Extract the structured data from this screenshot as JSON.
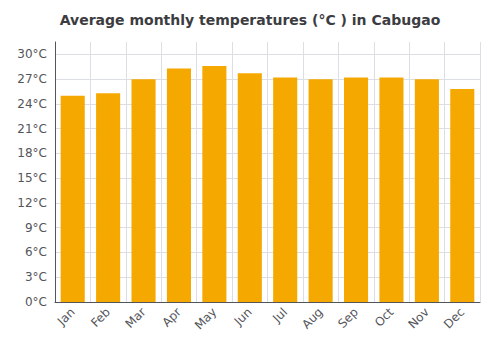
{
  "chart_data": {
    "type": "bar",
    "title": "Average monthly temperatures (°C ) in Cabugao",
    "categories": [
      "Jan",
      "Feb",
      "Mar",
      "Apr",
      "May",
      "Jun",
      "Jul",
      "Aug",
      "Sep",
      "Oct",
      "Nov",
      "Dec"
    ],
    "values": [
      25.0,
      25.3,
      27.0,
      28.3,
      28.6,
      27.7,
      27.2,
      27.0,
      27.2,
      27.2,
      27.0,
      25.8
    ],
    "color": "#F5A800",
    "ylim": [
      0,
      31.5
    ],
    "yticks": [
      {
        "value": 0,
        "label": "0°C"
      },
      {
        "value": 3,
        "label": "3°C"
      },
      {
        "value": 6,
        "label": "6°C"
      },
      {
        "value": 9,
        "label": "9°C"
      },
      {
        "value": 12,
        "label": "12°C"
      },
      {
        "value": 15,
        "label": "15°C"
      },
      {
        "value": 18,
        "label": "18°C"
      },
      {
        "value": 21,
        "label": "21°C"
      },
      {
        "value": 24,
        "label": "24°C"
      },
      {
        "value": 27,
        "label": "27°C"
      },
      {
        "value": 30,
        "label": "30°C"
      }
    ],
    "grid": true
  }
}
